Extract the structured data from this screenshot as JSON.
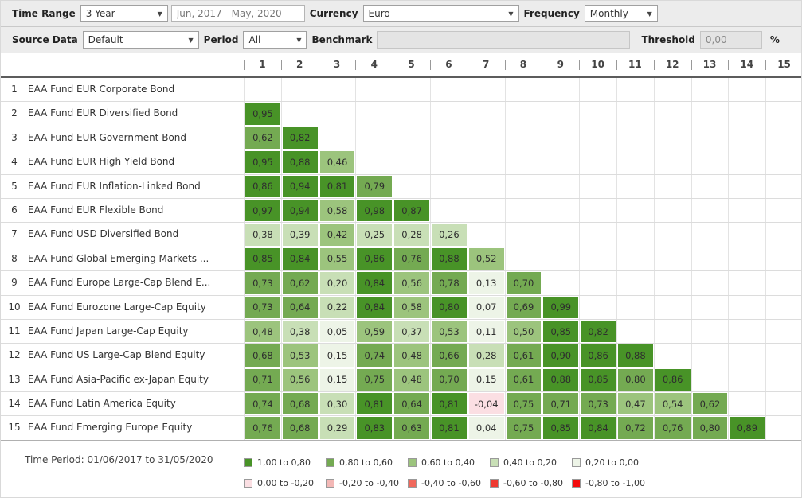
{
  "icons": {
    "dropdown_arrow": "▼"
  },
  "colors": {
    "bucket_levels": [
      "#489327",
      "#74aa52",
      "#9cc47d",
      "#c8dfb6",
      "#edf4e7",
      "#fbdfe3",
      "#f3b8b6",
      "#f0685c",
      "#ee3a30",
      "#f40b0c"
    ]
  },
  "toolbar": {
    "time_range": {
      "label": "Time Range",
      "value": "3 Year"
    },
    "date_range": {
      "value": "Jun, 2017 - May, 2020"
    },
    "currency": {
      "label": "Currency",
      "value": "Euro"
    },
    "frequency": {
      "label": "Frequency",
      "value": "Monthly"
    },
    "source_data": {
      "label": "Source Data",
      "value": "Default"
    },
    "period": {
      "label": "Period",
      "value": "All"
    },
    "benchmark": {
      "label": "Benchmark",
      "value": ""
    },
    "threshold": {
      "label": "Threshold",
      "value": "0,00",
      "unit": "%"
    }
  },
  "matrix": {
    "column_headers": [
      "1",
      "2",
      "3",
      "4",
      "5",
      "6",
      "7",
      "8",
      "9",
      "10",
      "11",
      "12",
      "13",
      "14",
      "15"
    ],
    "rows": [
      {
        "num": "1",
        "label": "EAA Fund EUR Corporate Bond",
        "values": [],
        "levels": []
      },
      {
        "num": "2",
        "label": "EAA Fund EUR Diversified Bond",
        "values": [
          "0,95"
        ],
        "levels": [
          0
        ]
      },
      {
        "num": "3",
        "label": "EAA Fund EUR Government Bond",
        "values": [
          "0,62",
          "0,82"
        ],
        "levels": [
          1,
          0
        ]
      },
      {
        "num": "4",
        "label": "EAA Fund EUR High Yield Bond",
        "values": [
          "0,95",
          "0,88",
          "0,46"
        ],
        "levels": [
          0,
          0,
          2
        ]
      },
      {
        "num": "5",
        "label": "EAA Fund EUR Inflation-Linked Bond",
        "values": [
          "0,86",
          "0,94",
          "0,81",
          "0,79"
        ],
        "levels": [
          0,
          0,
          0,
          1
        ]
      },
      {
        "num": "6",
        "label": "EAA Fund EUR Flexible Bond",
        "values": [
          "0,97",
          "0,94",
          "0,58",
          "0,98",
          "0,87"
        ],
        "levels": [
          0,
          0,
          2,
          0,
          0
        ]
      },
      {
        "num": "7",
        "label": "EAA Fund USD Diversified Bond",
        "values": [
          "0,38",
          "0,39",
          "0,42",
          "0,25",
          "0,28",
          "0,26"
        ],
        "levels": [
          3,
          3,
          2,
          3,
          3,
          3
        ]
      },
      {
        "num": "8",
        "label": "EAA Fund Global Emerging Markets ...",
        "values": [
          "0,85",
          "0,84",
          "0,55",
          "0,86",
          "0,76",
          "0,88",
          "0,52"
        ],
        "levels": [
          0,
          0,
          2,
          0,
          1,
          0,
          2
        ]
      },
      {
        "num": "9",
        "label": "EAA Fund Europe Large-Cap Blend E...",
        "values": [
          "0,73",
          "0,62",
          "0,20",
          "0,84",
          "0,56",
          "0,78",
          "0,13",
          "0,70"
        ],
        "levels": [
          1,
          1,
          3,
          0,
          2,
          1,
          4,
          1
        ]
      },
      {
        "num": "10",
        "label": "EAA Fund Eurozone Large-Cap Equity",
        "values": [
          "0,73",
          "0,64",
          "0,22",
          "0,84",
          "0,58",
          "0,80",
          "0,07",
          "0,69",
          "0,99"
        ],
        "levels": [
          1,
          1,
          3,
          0,
          2,
          0,
          4,
          1,
          0
        ]
      },
      {
        "num": "11",
        "label": "EAA Fund Japan Large-Cap Equity",
        "values": [
          "0,48",
          "0,38",
          "0,05",
          "0,59",
          "0,37",
          "0,53",
          "0,11",
          "0,50",
          "0,85",
          "0,82"
        ],
        "levels": [
          2,
          3,
          4,
          2,
          3,
          2,
          4,
          2,
          0,
          0
        ]
      },
      {
        "num": "12",
        "label": "EAA Fund US Large-Cap Blend Equity",
        "values": [
          "0,68",
          "0,53",
          "0,15",
          "0,74",
          "0,48",
          "0,66",
          "0,28",
          "0,61",
          "0,90",
          "0,86",
          "0,88"
        ],
        "levels": [
          1,
          2,
          4,
          1,
          2,
          1,
          3,
          1,
          0,
          0,
          0
        ]
      },
      {
        "num": "13",
        "label": "EAA Fund Asia-Pacific ex-Japan Equity",
        "values": [
          "0,71",
          "0,56",
          "0,15",
          "0,75",
          "0,48",
          "0,70",
          "0,15",
          "0,61",
          "0,88",
          "0,85",
          "0,80",
          "0,86"
        ],
        "levels": [
          1,
          2,
          4,
          1,
          2,
          1,
          4,
          1,
          0,
          0,
          1,
          0
        ]
      },
      {
        "num": "14",
        "label": "EAA Fund Latin America Equity",
        "values": [
          "0,74",
          "0,68",
          "0,30",
          "0,81",
          "0,64",
          "0,81",
          "-0,04",
          "0,75",
          "0,71",
          "0,73",
          "0,47",
          "0,54",
          "0,62"
        ],
        "levels": [
          1,
          1,
          3,
          0,
          1,
          0,
          5,
          1,
          1,
          1,
          2,
          2,
          1
        ]
      },
      {
        "num": "15",
        "label": "EAA Fund Emerging Europe Equity",
        "values": [
          "0,76",
          "0,68",
          "0,29",
          "0,83",
          "0,63",
          "0,81",
          "0,04",
          "0,75",
          "0,85",
          "0,84",
          "0,72",
          "0,76",
          "0,80",
          "0,89"
        ],
        "levels": [
          1,
          1,
          3,
          0,
          1,
          0,
          4,
          1,
          0,
          0,
          1,
          1,
          1,
          0
        ]
      }
    ]
  },
  "footer": {
    "time_period": "Time Period: 01/06/2017 to 31/05/2020",
    "legend": [
      {
        "label": "1,00 to 0,80",
        "level": 0
      },
      {
        "label": "0,80 to 0,60",
        "level": 1
      },
      {
        "label": "0,60 to 0,40",
        "level": 2
      },
      {
        "label": "0,40 to 0,20",
        "level": 3
      },
      {
        "label": "0,20 to 0,00",
        "level": 4
      },
      {
        "label": "0,00 to -0,20",
        "level": 5
      },
      {
        "label": "-0,20 to -0,40",
        "level": 6
      },
      {
        "label": "-0,40 to -0,60",
        "level": 7
      },
      {
        "label": "-0,60 to -0,80",
        "level": 8
      },
      {
        "label": "-0,80 to -1,00",
        "level": 9
      }
    ]
  }
}
